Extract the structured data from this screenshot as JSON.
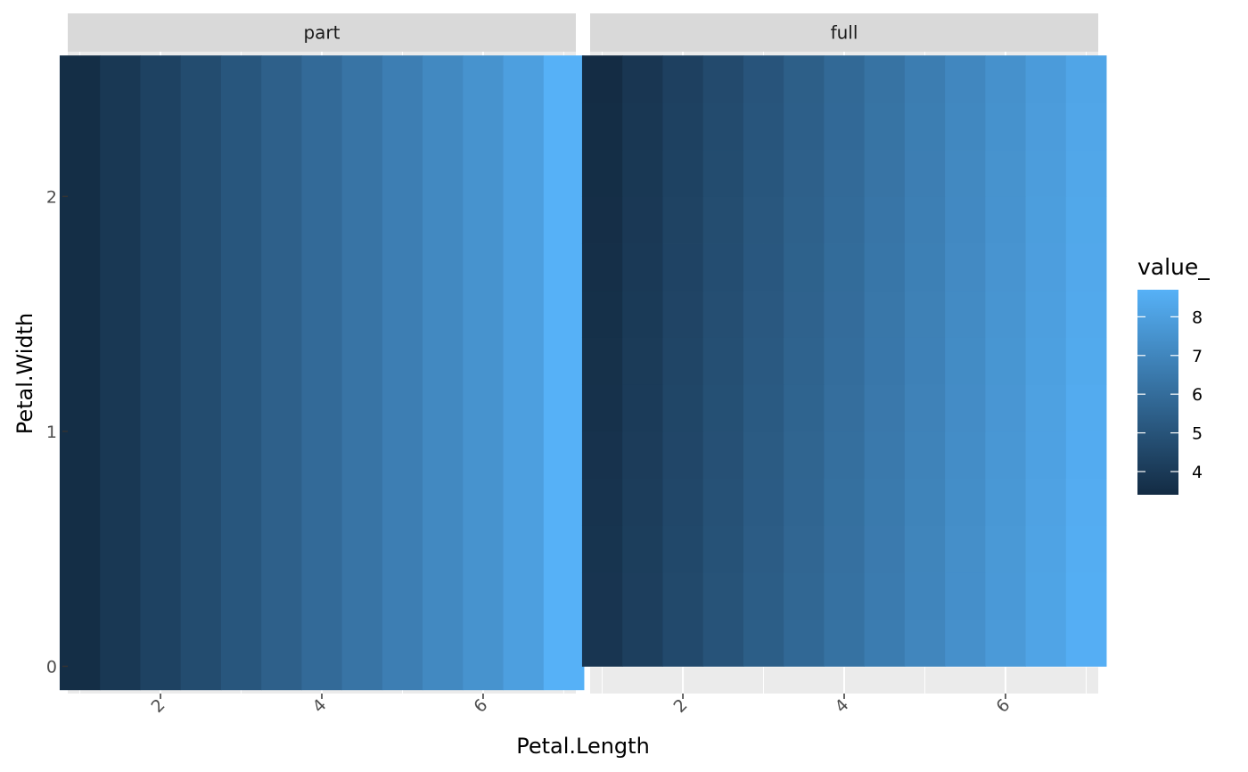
{
  "chart_data": {
    "type": "heatmap",
    "xlabel": "Petal.Length",
    "ylabel": "Petal.Width",
    "xlim": [
      0.85,
      7.15
    ],
    "ylim": [
      -0.116,
      2.616
    ],
    "x_ticks": [
      2,
      4,
      6
    ],
    "y_ticks": [
      0,
      1,
      2
    ],
    "grid": true,
    "legend": {
      "title": "value_",
      "position": "right",
      "ticks": [
        4,
        5,
        6,
        7,
        8
      ],
      "range": [
        3.4,
        8.7
      ],
      "low_color": "#132B43",
      "high_color": "#56B1F7"
    },
    "x_centers": [
      1.0,
      1.5,
      2.0,
      2.5,
      3.0,
      3.5,
      4.0,
      4.5,
      5.0,
      5.5,
      6.0,
      6.5,
      7.0
    ],
    "facets": [
      {
        "label": "part",
        "y_centers": [
          1.25
        ],
        "y_halfheight": 1.35,
        "rows": [
          [
            3.5,
            3.9,
            4.3,
            4.7,
            5.1,
            5.5,
            5.9,
            6.3,
            6.7,
            7.1,
            7.5,
            8.0,
            8.7
          ]
        ]
      },
      {
        "label": "full",
        "y_centers": [
          0.1,
          0.3,
          0.5,
          0.7,
          0.9,
          1.1,
          1.3,
          1.5,
          1.7,
          1.9,
          2.1,
          2.3,
          2.5
        ],
        "y_halfheight": 0.1,
        "rows": [
          [
            3.8,
            4.2,
            4.6,
            5.0,
            5.4,
            5.8,
            6.2,
            6.6,
            7.0,
            7.4,
            7.8,
            8.2,
            8.6
          ],
          [
            3.77,
            4.17,
            4.57,
            4.97,
            5.37,
            5.77,
            6.17,
            6.57,
            6.97,
            7.37,
            7.77,
            8.17,
            8.57
          ],
          [
            3.74,
            4.14,
            4.54,
            4.94,
            5.34,
            5.74,
            6.14,
            6.54,
            6.94,
            7.34,
            7.74,
            8.14,
            8.54
          ],
          [
            3.71,
            4.11,
            4.51,
            4.91,
            5.31,
            5.71,
            6.11,
            6.51,
            6.91,
            7.31,
            7.71,
            8.11,
            8.51
          ],
          [
            3.68,
            4.08,
            4.48,
            4.88,
            5.28,
            5.68,
            6.08,
            6.48,
            6.88,
            7.28,
            7.68,
            8.08,
            8.48
          ],
          [
            3.65,
            4.05,
            4.45,
            4.85,
            5.25,
            5.65,
            6.05,
            6.45,
            6.85,
            7.25,
            7.65,
            8.05,
            8.45
          ],
          [
            3.62,
            4.02,
            4.42,
            4.82,
            5.22,
            5.62,
            6.02,
            6.42,
            6.82,
            7.22,
            7.62,
            8.02,
            8.42
          ],
          [
            3.59,
            3.99,
            4.39,
            4.79,
            5.19,
            5.59,
            5.99,
            6.39,
            6.79,
            7.19,
            7.59,
            7.99,
            8.39
          ],
          [
            3.56,
            3.96,
            4.36,
            4.76,
            5.16,
            5.56,
            5.96,
            6.36,
            6.76,
            7.16,
            7.56,
            7.96,
            8.36
          ],
          [
            3.53,
            3.93,
            4.33,
            4.73,
            5.13,
            5.53,
            5.93,
            6.33,
            6.73,
            7.13,
            7.53,
            7.93,
            8.33
          ],
          [
            3.5,
            3.9,
            4.3,
            4.7,
            5.1,
            5.5,
            5.9,
            6.3,
            6.7,
            7.1,
            7.5,
            7.9,
            8.3
          ],
          [
            3.47,
            3.87,
            4.27,
            4.67,
            5.07,
            5.47,
            5.87,
            6.27,
            6.67,
            7.07,
            7.47,
            7.87,
            8.27
          ],
          [
            3.44,
            3.84,
            4.24,
            4.64,
            5.04,
            5.44,
            5.84,
            6.24,
            6.64,
            7.04,
            7.44,
            7.84,
            8.24
          ]
        ]
      }
    ]
  }
}
